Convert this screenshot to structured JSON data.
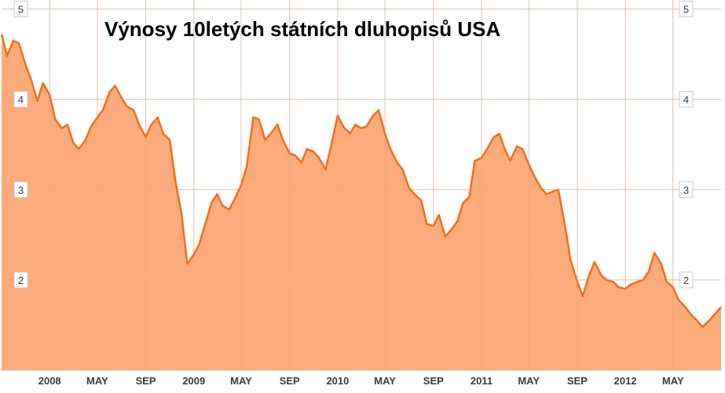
{
  "chart_data": {
    "type": "area",
    "title": "Výnosy 10letých státních dluhopisů USA",
    "xlabel": "",
    "ylabel": "",
    "ylim": [
      1.0,
      5.1
    ],
    "xlim": [
      "2007-09-01",
      "2012-08-31"
    ],
    "y_ticks": [
      "2",
      "3",
      "4",
      "5"
    ],
    "x_ticks": [
      {
        "date": "2008-01-01",
        "label": "2008"
      },
      {
        "date": "2008-05-01",
        "label": "MAY"
      },
      {
        "date": "2008-09-01",
        "label": "SEP"
      },
      {
        "date": "2009-01-01",
        "label": "2009"
      },
      {
        "date": "2009-05-01",
        "label": "MAY"
      },
      {
        "date": "2009-09-01",
        "label": "SEP"
      },
      {
        "date": "2010-01-01",
        "label": "2010"
      },
      {
        "date": "2010-05-01",
        "label": "MAY"
      },
      {
        "date": "2010-09-01",
        "label": "SEP"
      },
      {
        "date": "2011-01-01",
        "label": "2011"
      },
      {
        "date": "2011-05-01",
        "label": "MAY"
      },
      {
        "date": "2011-09-01",
        "label": "SEP"
      },
      {
        "date": "2012-01-01",
        "label": "2012"
      },
      {
        "date": "2012-05-01",
        "label": "MAY"
      }
    ],
    "grid": true,
    "colors": {
      "line": "#f26d1b",
      "fill": "#fcab7d",
      "grid": "#d7d7d7",
      "axis_label": "#3a3a3a"
    },
    "series": [
      {
        "x": [
          "2007-09-01",
          "2007-09-15",
          "2007-10-01",
          "2007-10-15",
          "2007-11-01",
          "2007-11-15",
          "2007-12-01",
          "2007-12-15",
          "2008-01-01",
          "2008-01-15",
          "2008-02-01",
          "2008-02-15",
          "2008-03-01",
          "2008-03-15",
          "2008-04-01",
          "2008-04-15",
          "2008-05-01",
          "2008-05-15",
          "2008-06-01",
          "2008-06-15",
          "2008-07-01",
          "2008-07-15",
          "2008-08-01",
          "2008-08-15",
          "2008-09-01",
          "2008-09-15",
          "2008-10-01",
          "2008-10-15",
          "2008-11-01",
          "2008-11-15",
          "2008-12-01",
          "2008-12-15",
          "2009-01-01",
          "2009-01-15",
          "2009-02-01",
          "2009-02-15",
          "2009-03-01",
          "2009-03-15",
          "2009-04-01",
          "2009-04-15",
          "2009-05-01",
          "2009-05-15",
          "2009-06-01",
          "2009-06-15",
          "2009-07-01",
          "2009-07-15",
          "2009-08-01",
          "2009-08-15",
          "2009-09-01",
          "2009-09-15",
          "2009-10-01",
          "2009-10-15",
          "2009-11-01",
          "2009-11-15",
          "2009-12-01",
          "2009-12-15",
          "2010-01-01",
          "2010-01-15",
          "2010-02-01",
          "2010-02-15",
          "2010-03-01",
          "2010-03-15",
          "2010-04-01",
          "2010-04-15",
          "2010-05-01",
          "2010-05-15",
          "2010-06-01",
          "2010-06-15",
          "2010-07-01",
          "2010-07-15",
          "2010-08-01",
          "2010-08-15",
          "2010-09-01",
          "2010-09-15",
          "2010-10-01",
          "2010-10-15",
          "2010-11-01",
          "2010-11-15",
          "2010-12-01",
          "2010-12-15",
          "2011-01-01",
          "2011-01-15",
          "2011-02-01",
          "2011-02-15",
          "2011-03-01",
          "2011-03-15",
          "2011-04-01",
          "2011-04-15",
          "2011-05-01",
          "2011-05-15",
          "2011-06-01",
          "2011-06-15",
          "2011-07-01",
          "2011-07-15",
          "2011-08-01",
          "2011-08-15",
          "2011-09-01",
          "2011-09-15",
          "2011-10-01",
          "2011-10-15",
          "2011-11-01",
          "2011-11-15",
          "2011-12-01",
          "2011-12-15",
          "2012-01-01",
          "2012-01-15",
          "2012-02-01",
          "2012-02-15",
          "2012-03-01",
          "2012-03-15",
          "2012-04-01",
          "2012-04-15",
          "2012-05-01",
          "2012-05-15",
          "2012-06-01",
          "2012-06-15",
          "2012-07-01",
          "2012-07-15",
          "2012-08-01",
          "2012-08-15",
          "2012-08-31"
        ],
        "y": [
          4.72,
          4.48,
          4.65,
          4.62,
          4.38,
          4.22,
          3.98,
          4.18,
          4.05,
          3.78,
          3.68,
          3.72,
          3.52,
          3.45,
          3.55,
          3.7,
          3.8,
          3.88,
          4.08,
          4.15,
          4.02,
          3.92,
          3.88,
          3.72,
          3.58,
          3.72,
          3.8,
          3.62,
          3.55,
          3.1,
          2.72,
          2.18,
          2.28,
          2.4,
          2.65,
          2.86,
          2.95,
          2.82,
          2.78,
          2.9,
          3.05,
          3.25,
          3.8,
          3.78,
          3.55,
          3.62,
          3.72,
          3.55,
          3.4,
          3.38,
          3.3,
          3.45,
          3.42,
          3.35,
          3.22,
          3.48,
          3.82,
          3.7,
          3.62,
          3.72,
          3.68,
          3.7,
          3.82,
          3.88,
          3.62,
          3.45,
          3.3,
          3.22,
          3.02,
          2.95,
          2.88,
          2.62,
          2.6,
          2.72,
          2.48,
          2.55,
          2.65,
          2.85,
          2.92,
          3.32,
          3.35,
          3.45,
          3.58,
          3.62,
          3.45,
          3.32,
          3.48,
          3.45,
          3.28,
          3.15,
          3.02,
          2.95,
          2.98,
          3.0,
          2.6,
          2.22,
          1.98,
          1.82,
          2.05,
          2.2,
          2.05,
          2.0,
          1.98,
          1.92,
          1.9,
          1.95,
          1.98,
          2.0,
          2.1,
          2.3,
          2.18,
          1.98,
          1.92,
          1.78,
          1.7,
          1.62,
          1.55,
          1.48,
          1.55,
          1.62,
          1.7
        ]
      }
    ]
  }
}
